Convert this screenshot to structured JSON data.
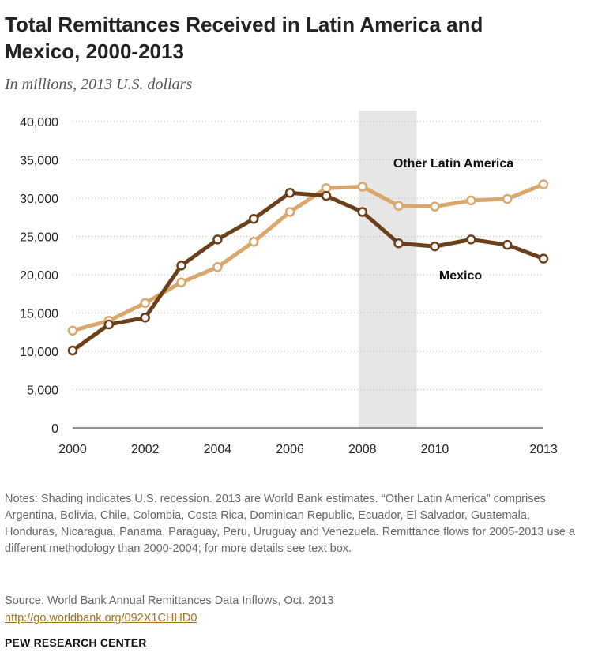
{
  "title": "Total Remittances Received in Latin America and Mexico, 2000-2013",
  "subtitle": "In millions, 2013 U.S. dollars",
  "notes": "Notes: Shading indicates U.S. recession. 2013 are World Bank estimates. “Other Latin America” comprises Argentina, Bolivia, Chile, Colombia, Costa Rica, Dominican Republic, Ecuador, El Salvador, Guatemala, Honduras, Nicaragua, Panama, Paraguay, Peru, Uruguay and Venezuela. Remittance flows for 2005-2013 use a different methodology than 2000-2004; for more details see text box.",
  "source": "Source: World Bank Annual Remittances Data Inflows, Oct. 2013",
  "source_link": "http://go.worldbank.org/092X1CHHD0",
  "brand": "PEW RESEARCH CENTER",
  "chart_data": {
    "type": "line",
    "x": [
      2000,
      2001,
      2002,
      2003,
      2004,
      2005,
      2006,
      2007,
      2008,
      2009,
      2010,
      2011,
      2012,
      2013
    ],
    "x_tick_labels": [
      "2000",
      "2002",
      "2004",
      "2006",
      "2008",
      "2010",
      "2013"
    ],
    "x_tick_values": [
      2000,
      2002,
      2004,
      2006,
      2008,
      2010,
      2013
    ],
    "y_tick_labels": [
      "0",
      "5,000",
      "10,000",
      "15,000",
      "20,000",
      "25,000",
      "30,000",
      "35,000",
      "40,000"
    ],
    "ylim": [
      0,
      40000
    ],
    "xlim": [
      2000,
      2013
    ],
    "grid": "horizontal dotted",
    "shaded_region": {
      "start": 2007.9,
      "end": 2009.5,
      "meaning": "U.S. recession"
    },
    "series": [
      {
        "name": "Other Latin America",
        "color": "#d9a66b",
        "values": [
          12700,
          14000,
          16300,
          19000,
          21000,
          24300,
          28200,
          31300,
          31500,
          29000,
          28900,
          29700,
          29900,
          31800
        ]
      },
      {
        "name": "Mexico",
        "color": "#6b3f1a",
        "values": [
          10100,
          13500,
          14400,
          21200,
          24600,
          27300,
          30700,
          30300,
          28200,
          24100,
          23700,
          24600,
          23900,
          22100
        ]
      }
    ]
  }
}
